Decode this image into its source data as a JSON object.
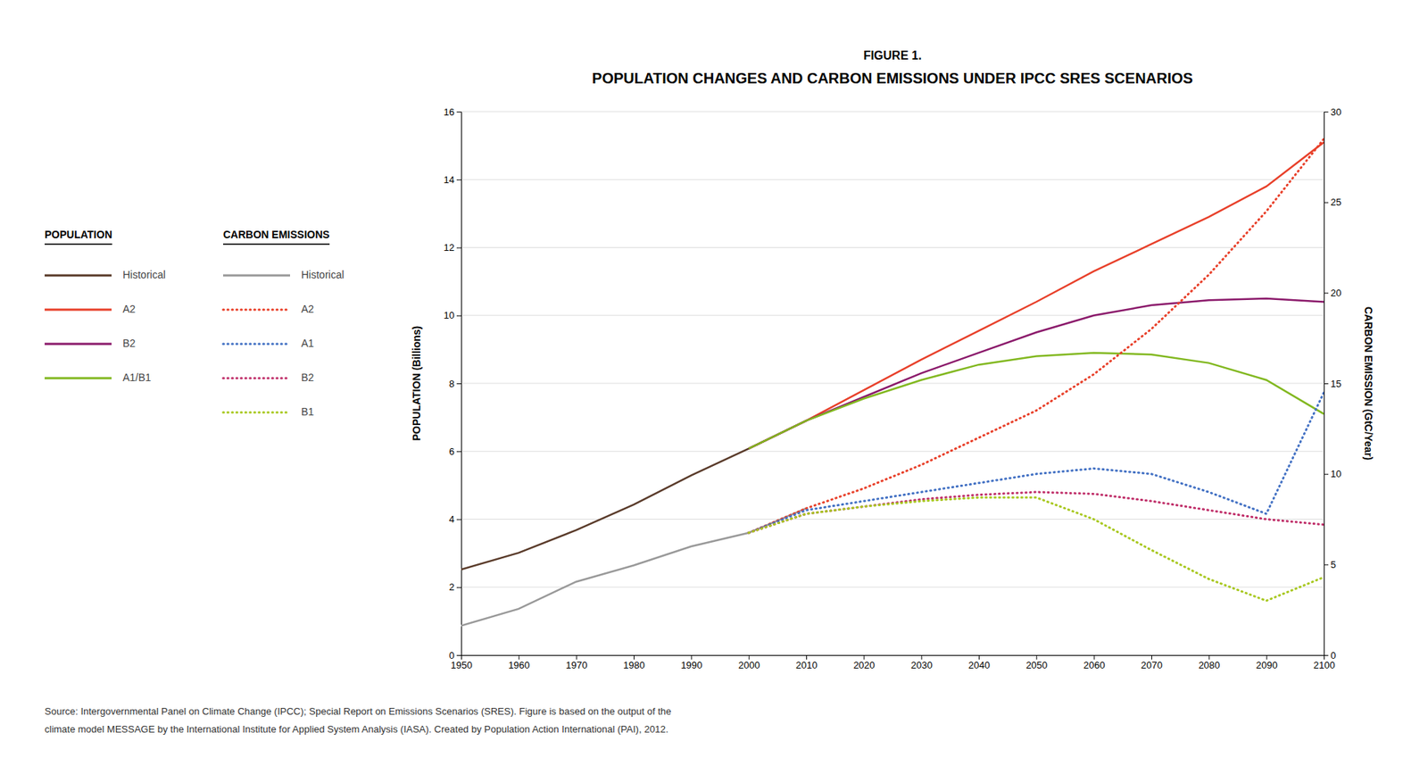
{
  "chart_data": {
    "type": "line",
    "title": "FIGURE 1.",
    "subtitle": "POPULATION CHANGES AND CARBON EMISSIONS UNDER IPCC SRES SCENARIOS",
    "ylabel": "POPULATION (Billions)",
    "y2label": "CARBON EMISSION (GtC/Year)",
    "annotations": [
      "Source: Intergovernmental Panel on Climate Change (IPCC); Special Report on Emissions Scenarios (SRES). Figure is based on the output of the",
      "climate model MESSAGE by the International Institute for Applied System Analysis (IASA). Created by Population Action International (PAI), 2012."
    ],
    "x": [
      1950,
      1960,
      1970,
      1980,
      1990,
      2000,
      2010,
      2020,
      2030,
      2040,
      2050,
      2060,
      2070,
      2080,
      2090,
      2100
    ],
    "xlim": [
      1950,
      2100
    ],
    "xticks": [
      1950,
      1960,
      1970,
      1980,
      1990,
      2000,
      2010,
      2020,
      2030,
      2040,
      2050,
      2060,
      2070,
      2080,
      2090,
      2100
    ],
    "ylim": [
      0,
      16
    ],
    "yticks": [
      0,
      2,
      4,
      6,
      8,
      10,
      12,
      14,
      16
    ],
    "y2lim": [
      0,
      30
    ],
    "y2ticks": [
      0,
      5,
      10,
      15,
      20,
      25,
      30
    ],
    "grid": true,
    "series": [
      {
        "name": "Historical",
        "group": "POPULATION",
        "color": "#5a3b2a",
        "line_style": "solid",
        "values": [
          2.52,
          3.01,
          3.68,
          4.43,
          5.29,
          6.08,
          6.9,
          null,
          null,
          null,
          null,
          null,
          null,
          null,
          null,
          null
        ]
      },
      {
        "name": "A2",
        "group": "POPULATION",
        "color": "#e8402a",
        "line_style": "solid",
        "values": [
          null,
          null,
          null,
          null,
          null,
          6.08,
          6.9,
          7.8,
          8.7,
          9.55,
          10.4,
          11.3,
          12.1,
          12.9,
          13.8,
          15.1
        ]
      },
      {
        "name": "B2",
        "group": "POPULATION",
        "color": "#8b1a6b",
        "line_style": "solid",
        "values": [
          null,
          null,
          null,
          null,
          null,
          6.08,
          6.9,
          7.6,
          8.3,
          8.9,
          9.5,
          10.0,
          10.3,
          10.45,
          10.5,
          10.4
        ]
      },
      {
        "name": "A1/B1",
        "group": "POPULATION",
        "color": "#82b820",
        "line_style": "solid",
        "values": [
          null,
          null,
          null,
          null,
          null,
          6.08,
          6.9,
          7.55,
          8.1,
          8.55,
          8.8,
          8.9,
          8.85,
          8.6,
          8.1,
          7.1
        ]
      },
      {
        "name": "Historical",
        "group": "CARBON EMISSIONS",
        "color": "#999999",
        "line_style": "solid",
        "axis": "y2",
        "values": [
          1.62,
          2.55,
          4.05,
          4.95,
          6.0,
          6.75,
          8.1,
          null,
          null,
          null,
          null,
          null,
          null,
          null,
          null,
          null
        ]
      },
      {
        "name": "A2",
        "group": "CARBON EMISSIONS",
        "color": "#e8402a",
        "line_style": "dotted",
        "axis": "y2",
        "values": [
          null,
          null,
          null,
          null,
          null,
          6.75,
          8.1,
          9.2,
          10.5,
          12.0,
          13.5,
          15.5,
          18.0,
          21.0,
          24.5,
          28.5
        ]
      },
      {
        "name": "A1",
        "group": "CARBON EMISSIONS",
        "color": "#4472c4",
        "line_style": "dotted",
        "axis": "y2",
        "values": [
          null,
          null,
          null,
          null,
          null,
          6.75,
          8.0,
          8.5,
          9.0,
          9.5,
          10.0,
          10.3,
          10.0,
          9.0,
          7.8,
          14.5
        ]
      },
      {
        "name": "B2",
        "group": "CARBON EMISSIONS",
        "color": "#c0306a",
        "line_style": "dotted",
        "axis": "y2",
        "values": [
          null,
          null,
          null,
          null,
          null,
          6.75,
          7.8,
          8.2,
          8.6,
          8.85,
          9.0,
          8.9,
          8.5,
          8.0,
          7.5,
          7.2
        ]
      },
      {
        "name": "B1",
        "group": "CARBON EMISSIONS",
        "color": "#a8c820",
        "line_style": "dotted",
        "axis": "y2",
        "values": [
          null,
          null,
          null,
          null,
          null,
          6.75,
          7.8,
          8.2,
          8.5,
          8.7,
          8.7,
          7.5,
          5.8,
          4.2,
          3.0,
          4.3
        ]
      }
    ]
  }
}
